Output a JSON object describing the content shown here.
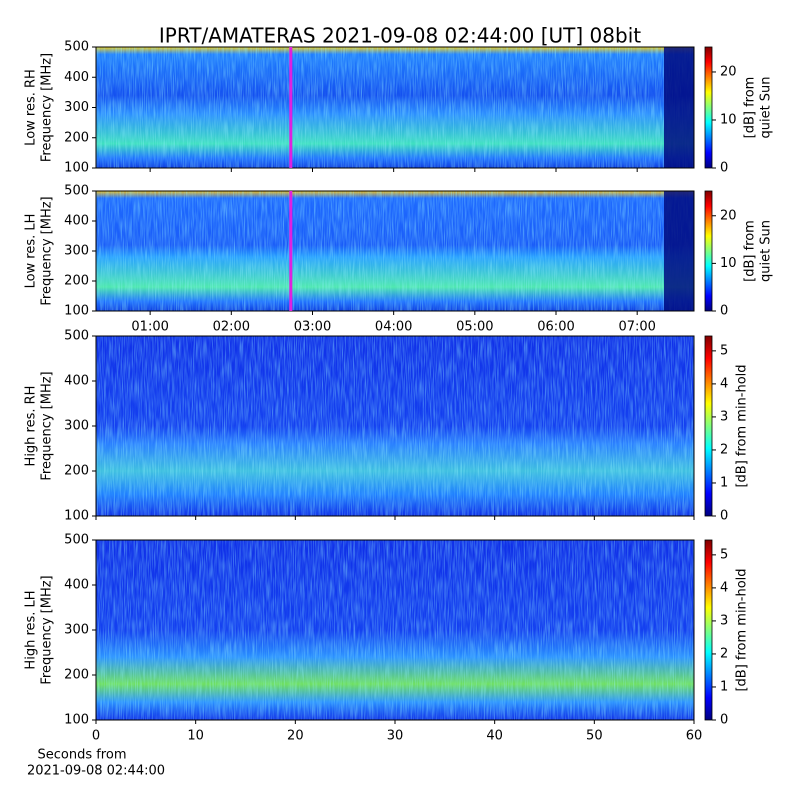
{
  "chart_data": {
    "type": "spectrogram",
    "title": "IPRT/AMATERAS 2021-09-08 02:44:00 [UT]   08bit",
    "colormap": "jet",
    "time_axis": {
      "xlim": [
        0.333,
        7.7
      ],
      "xticks": [
        {
          "value": 1,
          "label": "01:00"
        },
        {
          "value": 2,
          "label": "02:00"
        },
        {
          "value": 3,
          "label": "03:00"
        },
        {
          "value": 4,
          "label": "04:00"
        },
        {
          "value": 5,
          "label": "05:00"
        },
        {
          "value": 6,
          "label": "06:00"
        },
        {
          "value": 7,
          "label": "07:00"
        }
      ]
    },
    "seconds_axis": {
      "xlim": [
        0,
        60
      ],
      "xticks": [
        0,
        10,
        20,
        30,
        40,
        50,
        60
      ],
      "xlabel": [
        "Seconds from",
        "2021-09-08 02:44:00"
      ]
    },
    "panels": [
      {
        "ylabel": [
          "Low res. RH",
          "Frequency [MHz]"
        ],
        "ylim": [
          100,
          500
        ],
        "yticks": [
          100,
          200,
          300,
          400,
          500
        ],
        "xaxis": "time",
        "marker": {
          "x": 2.733,
          "color": "#e020e0"
        },
        "colorbar": {
          "label": [
            "[dB] from",
            "quiet Sun"
          ],
          "lim": [
            0,
            25.2
          ],
          "ticks": [
            0,
            10,
            20
          ]
        }
      },
      {
        "ylabel": [
          "Low res. LH",
          "Frequency [MHz]"
        ],
        "ylim": [
          100,
          500
        ],
        "yticks": [
          100,
          200,
          300,
          400,
          500
        ],
        "xaxis": "time",
        "marker": {
          "x": 2.733,
          "color": "#e020e0"
        },
        "colorbar": {
          "label": [
            "[dB] from",
            "quiet Sun"
          ],
          "lim": [
            0,
            25.2
          ],
          "ticks": [
            0,
            10,
            20
          ]
        }
      },
      {
        "ylabel": [
          "High res. RH",
          "Frequency [MHz]"
        ],
        "ylim": [
          100,
          500
        ],
        "yticks": [
          100,
          200,
          300,
          400,
          500
        ],
        "xaxis": "seconds",
        "colorbar": {
          "label": [
            "[dB] from min-hold"
          ],
          "lim": [
            0,
            5.45
          ],
          "ticks": [
            0,
            1,
            2,
            3,
            4,
            5
          ]
        }
      },
      {
        "ylabel": [
          "High res. LH",
          "Frequency [MHz]"
        ],
        "ylim": [
          100,
          500
        ],
        "yticks": [
          100,
          200,
          300,
          400,
          500
        ],
        "xaxis": "seconds",
        "colorbar": {
          "label": [
            "[dB] from min-hold"
          ],
          "lim": [
            0,
            5.45
          ],
          "ticks": [
            0,
            1,
            2,
            3,
            4,
            5
          ]
        }
      }
    ]
  }
}
